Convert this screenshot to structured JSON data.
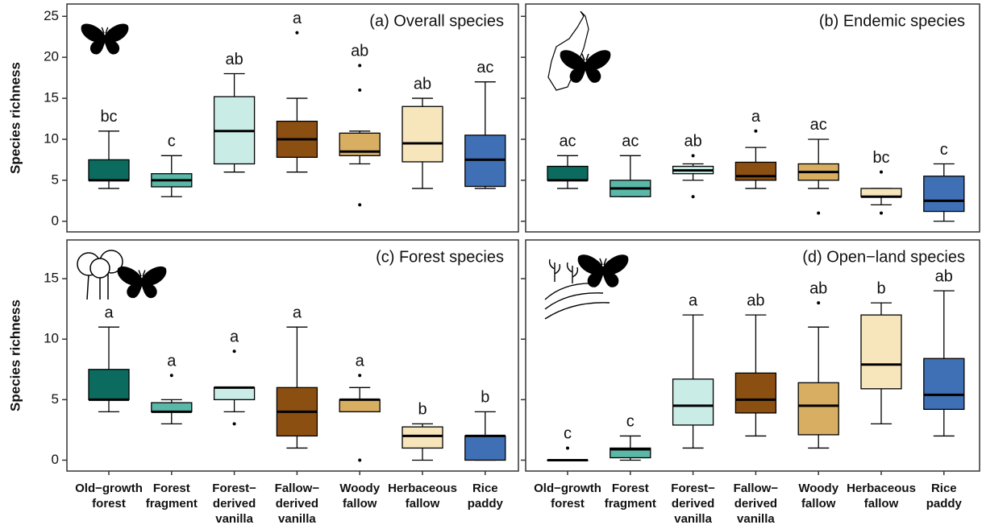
{
  "chart_data": [
    {
      "type": "box",
      "title": "(a) Overall species",
      "ylabel": "Species richness",
      "ylim": [
        -1.3,
        26.5
      ],
      "yticks": [
        0,
        5,
        10,
        15,
        20,
        25
      ],
      "show_tick_labels": true,
      "boxes": [
        {
          "min": 4,
          "q1": 5,
          "median": 5,
          "q3": 7.5,
          "max": 11,
          "outliers": [],
          "letter": "bc",
          "color": "#0b6b5f"
        },
        {
          "min": 3,
          "q1": 4.2,
          "median": 5,
          "q3": 5.8,
          "max": 8,
          "outliers": [],
          "letter": "c",
          "color": "#5bb8a8"
        },
        {
          "min": 6,
          "q1": 7,
          "median": 11,
          "q3": 15.2,
          "max": 18,
          "outliers": [],
          "letter": "ab",
          "color": "#c9ece6"
        },
        {
          "min": 6,
          "q1": 7.8,
          "median": 10,
          "q3": 12.2,
          "max": 15,
          "outliers": [
            23
          ],
          "letter": "a",
          "color": "#8c4f12"
        },
        {
          "min": 7,
          "q1": 8,
          "median": 8.5,
          "q3": 10.75,
          "max": 11,
          "outliers": [
            19,
            16,
            2
          ],
          "letter": "ab",
          "color": "#d8ae62"
        },
        {
          "min": 4,
          "q1": 7.25,
          "median": 9.5,
          "q3": 14,
          "max": 15,
          "outliers": [],
          "letter": "ab",
          "color": "#f7e5bc"
        },
        {
          "min": 4,
          "q1": 4.25,
          "median": 7.5,
          "q3": 10.5,
          "max": 17,
          "outliers": [],
          "letter": "ac",
          "color": "#3f6fb5"
        }
      ]
    },
    {
      "type": "box",
      "title": "(b) Endemic species",
      "ylim": [
        -1.3,
        26.5
      ],
      "yticks": [
        0,
        5,
        10,
        15,
        20,
        25
      ],
      "show_tick_labels": false,
      "boxes": [
        {
          "min": 4,
          "q1": 5,
          "median": 5,
          "q3": 6.7,
          "max": 8,
          "outliers": [],
          "letter": "ac",
          "color": "#0b6b5f"
        },
        {
          "min": 3,
          "q1": 3,
          "median": 4,
          "q3": 5,
          "max": 8,
          "outliers": [],
          "letter": "ac",
          "color": "#5bb8a8"
        },
        {
          "min": 5,
          "q1": 5.8,
          "median": 6.2,
          "q3": 6.7,
          "max": 7,
          "outliers": [
            8,
            3
          ],
          "letter": "ab",
          "color": "#c9ece6"
        },
        {
          "min": 4,
          "q1": 5,
          "median": 5.5,
          "q3": 7.2,
          "max": 9,
          "outliers": [
            11
          ],
          "letter": "a",
          "color": "#8c4f12"
        },
        {
          "min": 4,
          "q1": 5,
          "median": 6,
          "q3": 7,
          "max": 10,
          "outliers": [
            1
          ],
          "letter": "ac",
          "color": "#d8ae62"
        },
        {
          "min": 2,
          "q1": 3,
          "median": 3,
          "q3": 4,
          "max": 4,
          "outliers": [
            6,
            1
          ],
          "letter": "bc",
          "color": "#f7e5bc"
        },
        {
          "min": 0,
          "q1": 1.2,
          "median": 2.5,
          "q3": 5.5,
          "max": 7,
          "outliers": [],
          "letter": "c",
          "color": "#3f6fb5"
        }
      ]
    },
    {
      "type": "box",
      "title": "(c) Forest species",
      "ylabel": "Species richness",
      "ylim": [
        -0.9,
        18.2
      ],
      "yticks": [
        0,
        5,
        10,
        15
      ],
      "show_tick_labels": true,
      "categories": [
        "Old−growth\nforest",
        "Forest\nfragment",
        "Forest−\nderived\nvanilla",
        "Fallow−\nderived\nvanilla",
        "Woody\nfallow",
        "Herbaceous\nfallow",
        "Rice\npaddy"
      ],
      "boxes": [
        {
          "min": 4,
          "q1": 5,
          "median": 5,
          "q3": 7.5,
          "max": 11,
          "outliers": [],
          "letter": "a",
          "color": "#0b6b5f"
        },
        {
          "min": 3,
          "q1": 4,
          "median": 4,
          "q3": 4.75,
          "max": 5,
          "outliers": [
            7
          ],
          "letter": "a",
          "color": "#5bb8a8"
        },
        {
          "min": 4,
          "q1": 5,
          "median": 6,
          "q3": 6,
          "max": 6,
          "outliers": [
            9,
            3
          ],
          "letter": "a",
          "color": "#c9ece6"
        },
        {
          "min": 1,
          "q1": 2,
          "median": 4,
          "q3": 6,
          "max": 11,
          "outliers": [],
          "letter": "a",
          "color": "#8c4f12"
        },
        {
          "min": 4,
          "q1": 4,
          "median": 5,
          "q3": 5,
          "max": 6,
          "outliers": [
            7,
            0
          ],
          "letter": "a",
          "color": "#d8ae62"
        },
        {
          "min": 0,
          "q1": 1,
          "median": 2,
          "q3": 2.75,
          "max": 3,
          "outliers": [],
          "letter": "b",
          "color": "#f7e5bc"
        },
        {
          "min": 0,
          "q1": 0,
          "median": 2,
          "q3": 2,
          "max": 4,
          "outliers": [],
          "letter": "b",
          "color": "#3f6fb5"
        }
      ]
    },
    {
      "type": "box",
      "title": "(d) Open−land species",
      "ylim": [
        -0.9,
        18.2
      ],
      "yticks": [
        0,
        5,
        10,
        15
      ],
      "show_tick_labels": false,
      "categories": [
        "Old−growth\nforest",
        "Forest\nfragment",
        "Forest−\nderived\nvanilla",
        "Fallow−\nderived\nvanilla",
        "Woody\nfallow",
        "Herbaceous\nfallow",
        "Rice\npaddy"
      ],
      "boxes": [
        {
          "min": 0,
          "q1": 0,
          "median": 0,
          "q3": 0,
          "max": 0,
          "outliers": [
            1
          ],
          "letter": "c",
          "color": "#0b6b5f"
        },
        {
          "min": 0,
          "q1": 0.2,
          "median": 0.9,
          "q3": 1,
          "max": 2,
          "outliers": [],
          "letter": "c",
          "color": "#5bb8a8"
        },
        {
          "min": 1,
          "q1": 2.9,
          "median": 4.5,
          "q3": 6.7,
          "max": 12,
          "outliers": [],
          "letter": "a",
          "color": "#c9ece6"
        },
        {
          "min": 2,
          "q1": 3.9,
          "median": 5,
          "q3": 7.2,
          "max": 12,
          "outliers": [],
          "letter": "ab",
          "color": "#8c4f12"
        },
        {
          "min": 1,
          "q1": 2.1,
          "median": 4.5,
          "q3": 6.4,
          "max": 11,
          "outliers": [
            13
          ],
          "letter": "ab",
          "color": "#d8ae62"
        },
        {
          "min": 3,
          "q1": 5.9,
          "median": 7.9,
          "q3": 12,
          "max": 13,
          "outliers": [],
          "letter": "b",
          "color": "#f7e5bc"
        },
        {
          "min": 2,
          "q1": 4.2,
          "median": 5.4,
          "q3": 8.4,
          "max": 14,
          "outliers": [],
          "letter": "ab",
          "color": "#3f6fb5"
        }
      ]
    }
  ]
}
